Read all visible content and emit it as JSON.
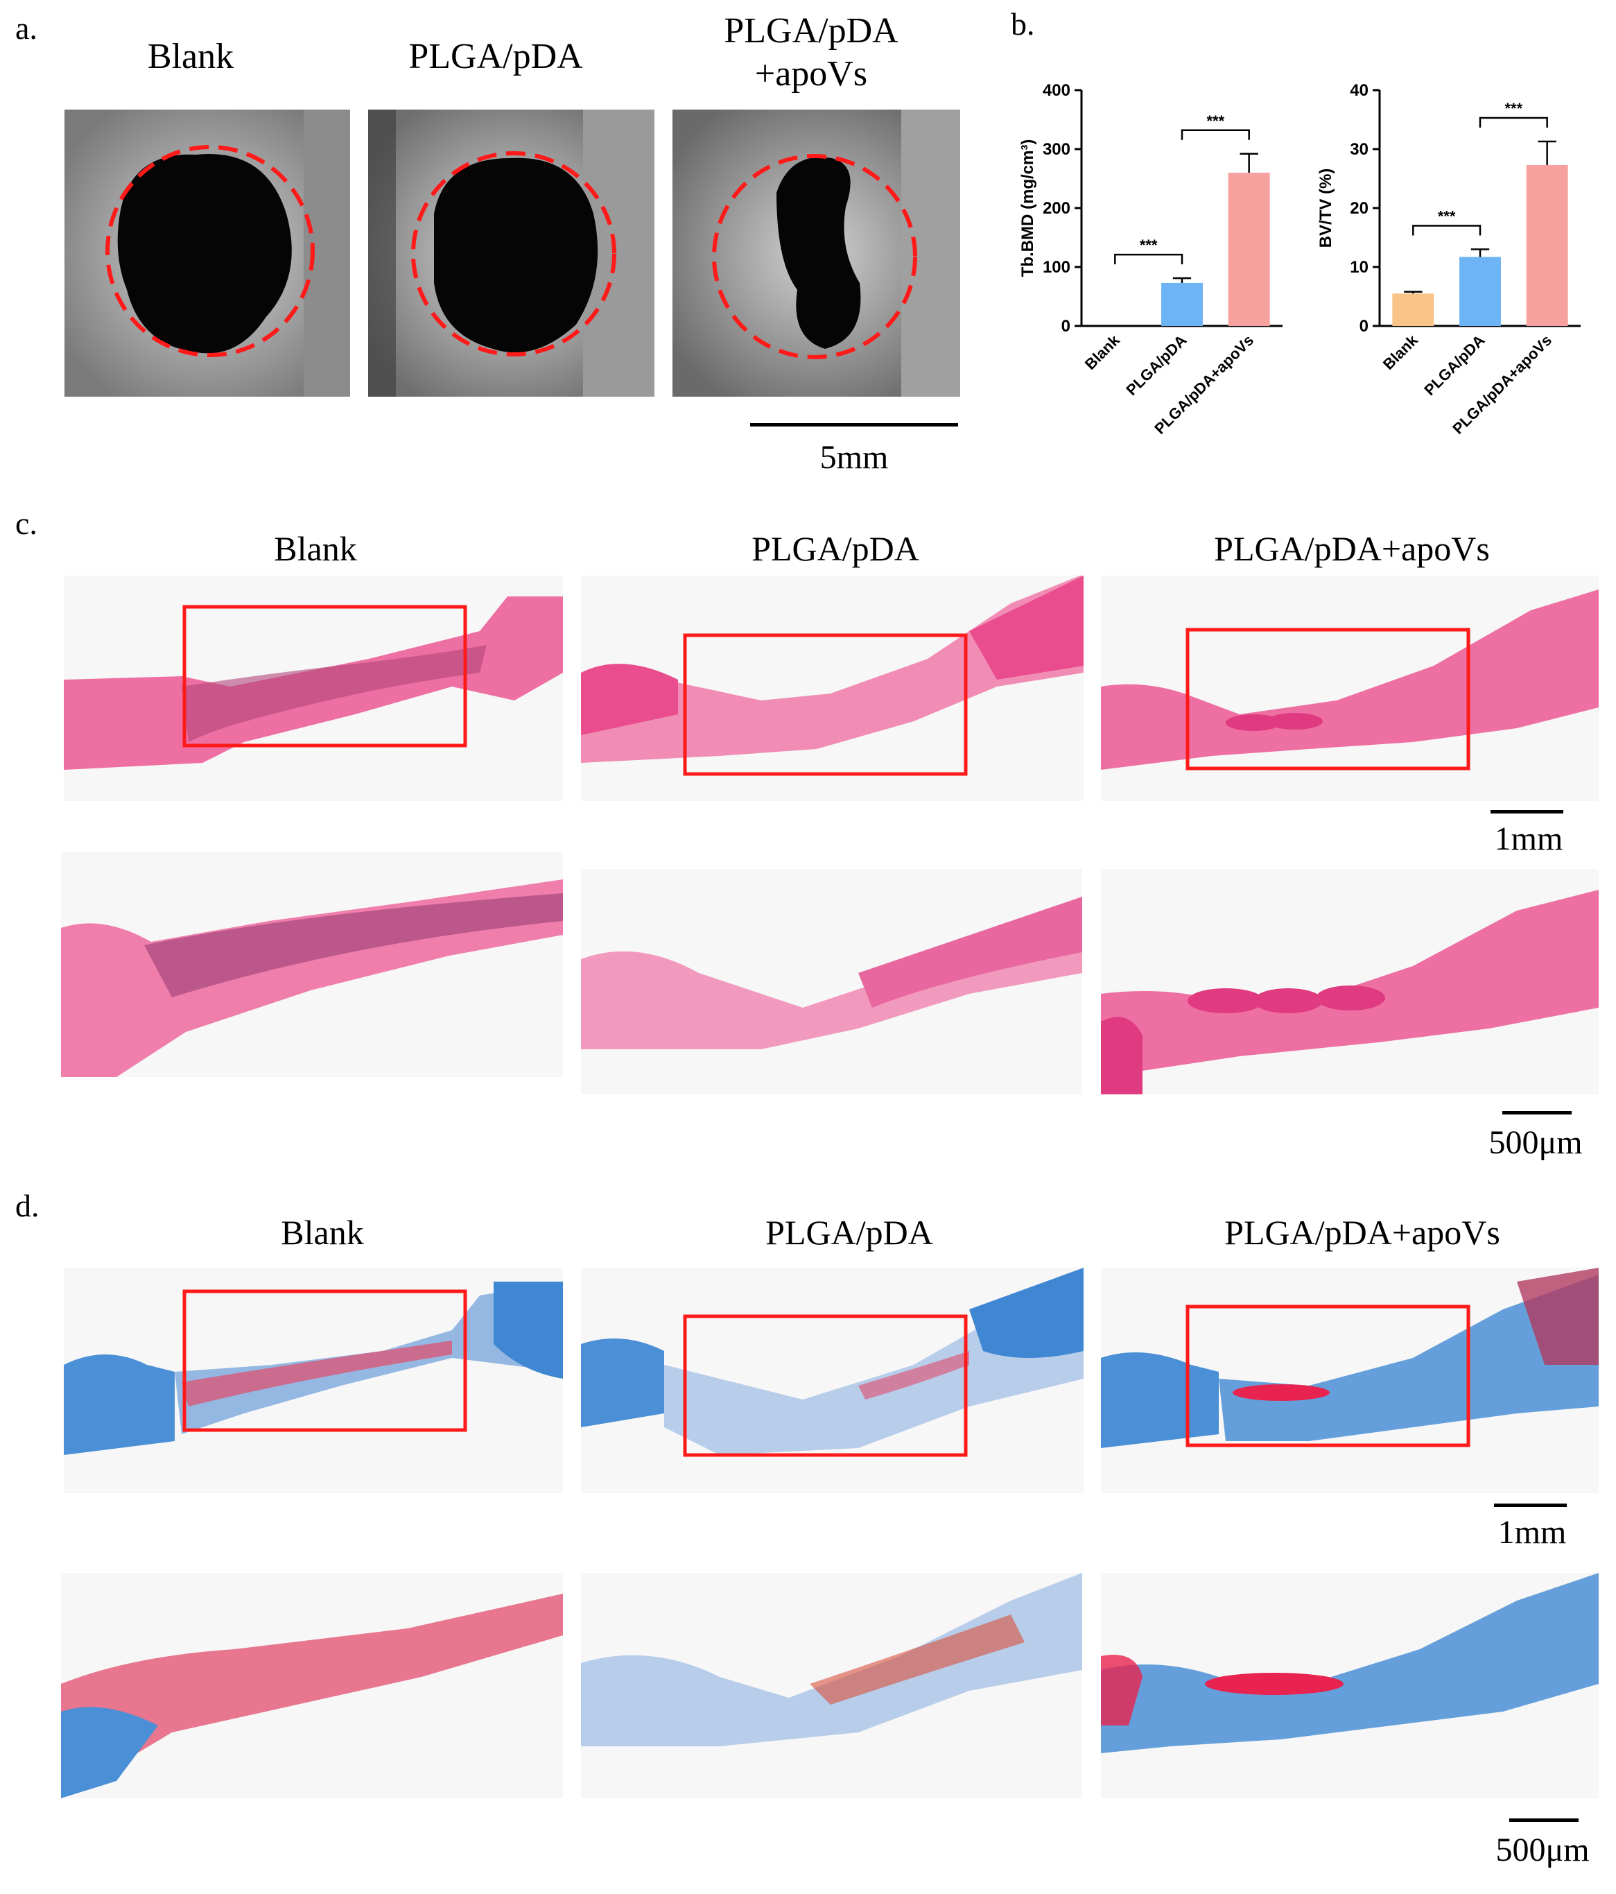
{
  "figure": {
    "panel_labels": {
      "a": "a.",
      "b": "b.",
      "c": "c.",
      "d": "d."
    },
    "panel_a": {
      "groups": [
        "Blank",
        "PLGA/pDA",
        "PLGA/pDA\n+apoVs"
      ],
      "scale": "5mm"
    },
    "panel_c": {
      "groups": [
        "Blank",
        "PLGA/pDA",
        "PLGA/pDA+apoVs"
      ],
      "scale_low": "1mm",
      "scale_high": "500μm"
    },
    "panel_d": {
      "groups": [
        "Blank",
        "PLGA/pDA",
        "PLGA/pDA+apoVs"
      ],
      "scale_low": "1mm",
      "scale_high": "500μm"
    },
    "colors": {
      "blank": "#f9c487",
      "plga_pda": "#6cb4f5",
      "plga_pda_apovs": "#f7a19e",
      "he_pink": "#ec5f97",
      "masson_blue": "#4b8fd6",
      "roi_red": "#ff1a1a"
    }
  },
  "chart_data": [
    {
      "type": "bar",
      "categories": [
        "Blank",
        "PLGA/pDA",
        "PLGA/pDA+apoVs"
      ],
      "values": [
        0,
        73,
        260
      ],
      "errors": [
        0,
        8,
        32
      ],
      "ylabel": "Tb.BMD (mg/cm³)",
      "ylim": [
        0,
        400
      ],
      "yticks": [
        0,
        100,
        200,
        300,
        400
      ],
      "significance": [
        {
          "pair": [
            0,
            1
          ],
          "label": "***"
        },
        {
          "pair": [
            1,
            2
          ],
          "label": "***"
        }
      ]
    },
    {
      "type": "bar",
      "categories": [
        "Blank",
        "PLGA/pDA",
        "PLGA/pDA+apoVs"
      ],
      "values": [
        5.5,
        11.7,
        27.3
      ],
      "errors": [
        0.3,
        1.3,
        4.0
      ],
      "ylabel": "BV/TV (%)",
      "ylim": [
        0,
        40
      ],
      "yticks": [
        0,
        10,
        20,
        30,
        40
      ],
      "significance": [
        {
          "pair": [
            0,
            1
          ],
          "label": "***"
        },
        {
          "pair": [
            1,
            2
          ],
          "label": "***"
        }
      ]
    }
  ]
}
